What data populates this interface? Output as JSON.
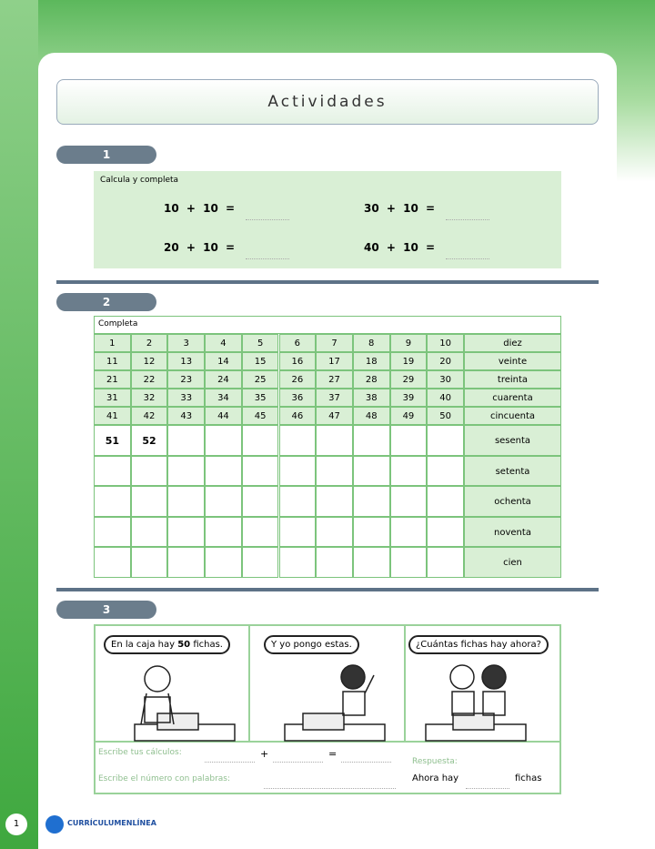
{
  "title": "Actividades",
  "section1": {
    "number": "1",
    "instruction": "Calcula y completa",
    "exercises": [
      "10 + 10 =",
      "30 + 10 =",
      "20 + 10 =",
      "40 + 10 ="
    ]
  },
  "section2": {
    "number": "2",
    "instruction": "Completa",
    "numbers": [
      [
        1,
        2,
        3,
        4,
        5,
        6,
        7,
        8,
        9,
        10
      ],
      [
        11,
        12,
        13,
        14,
        15,
        16,
        17,
        18,
        19,
        20
      ],
      [
        21,
        22,
        23,
        24,
        25,
        26,
        27,
        28,
        29,
        30
      ],
      [
        31,
        32,
        33,
        34,
        35,
        36,
        37,
        38,
        39,
        40
      ],
      [
        41,
        42,
        43,
        44,
        45,
        46,
        47,
        48,
        49,
        50
      ],
      [
        51,
        52
      ]
    ],
    "words": [
      "diez",
      "veinte",
      "treinta",
      "cuarenta",
      "cincuenta",
      "sesenta",
      "setenta",
      "ochenta",
      "noventa",
      "cien"
    ]
  },
  "section3": {
    "number": "3",
    "bubbles": [
      {
        "before": "En la caja hay",
        "number": "50",
        "after": "fichas."
      },
      {
        "text": "Y yo pongo estas."
      },
      {
        "text": "¿Cuántas fichas hay ahora?"
      }
    ],
    "calc_label": "Escribe tus cálculos:",
    "plus": "+",
    "equals": "=",
    "answer_label": "Respuesta:",
    "words_label": "Escribe el número con palabras:",
    "answer_start": "Ahora hay",
    "answer_end": "fichas"
  },
  "footer": {
    "page": "1",
    "logo": "CURRÍCULUMENLÍNEA"
  }
}
